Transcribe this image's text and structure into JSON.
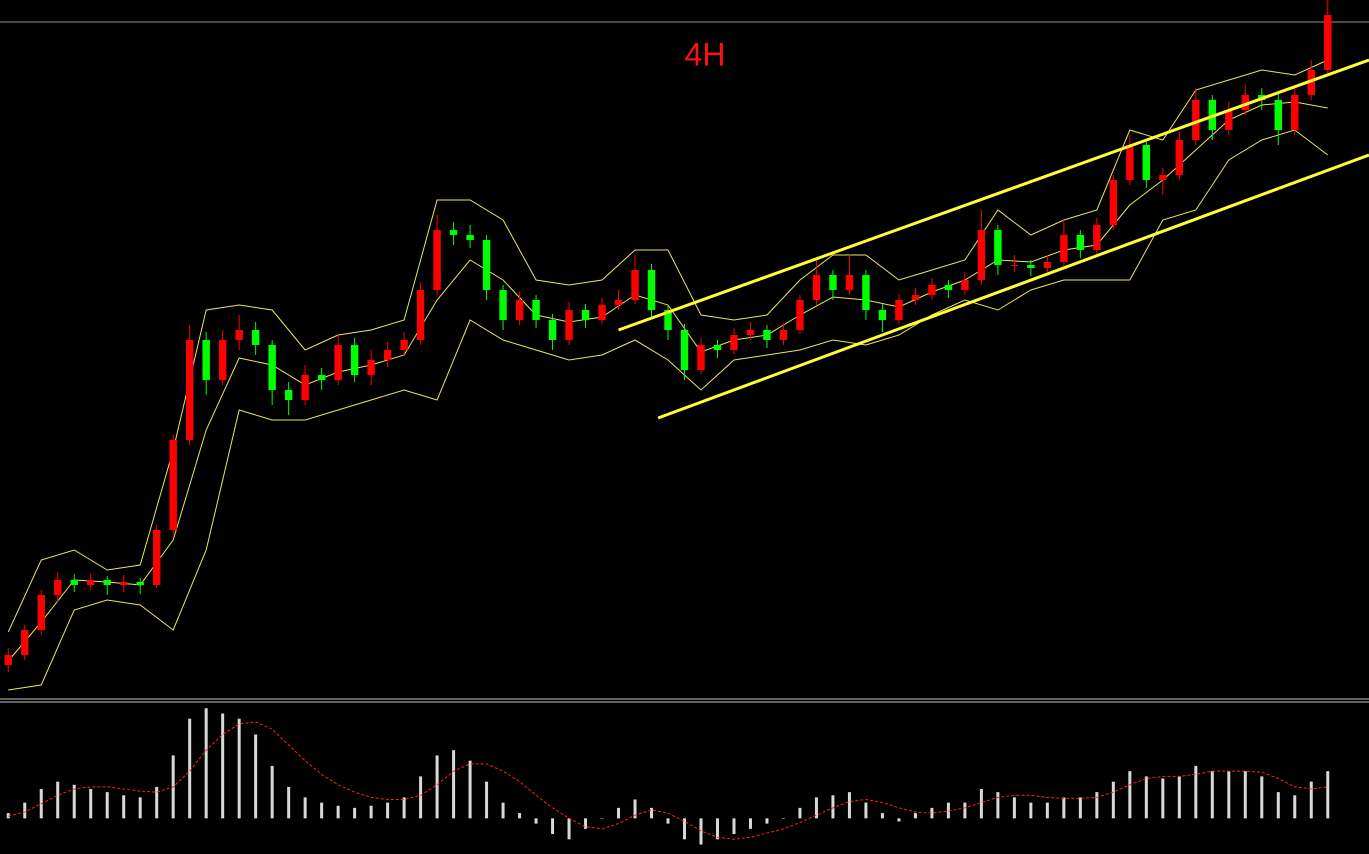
{
  "chart_data": {
    "type": "candlestick",
    "title": "4H",
    "up_color": "#ff0000",
    "down_color": "#00ff00",
    "band_color": "#e8e85a",
    "trendline_color": "#ffff33",
    "xlim": [
      -0.5,
      82.5
    ],
    "ylim": [
      0,
      700
    ],
    "candles": [
      [
        35,
        52,
        28,
        45
      ],
      [
        45,
        75,
        40,
        70
      ],
      [
        70,
        110,
        65,
        105
      ],
      [
        105,
        128,
        98,
        120
      ],
      [
        120,
        126,
        108,
        115
      ],
      [
        115,
        127,
        110,
        120
      ],
      [
        120,
        124,
        105,
        115
      ],
      [
        115,
        125,
        108,
        118
      ],
      [
        118,
        122,
        106,
        115
      ],
      [
        115,
        175,
        112,
        170
      ],
      [
        170,
        265,
        165,
        260
      ],
      [
        260,
        375,
        255,
        360
      ],
      [
        360,
        368,
        305,
        320
      ],
      [
        320,
        370,
        315,
        360
      ],
      [
        360,
        385,
        350,
        370
      ],
      [
        370,
        378,
        345,
        355
      ],
      [
        355,
        360,
        295,
        310
      ],
      [
        310,
        318,
        285,
        300
      ],
      [
        300,
        335,
        295,
        325
      ],
      [
        325,
        332,
        310,
        320
      ],
      [
        320,
        365,
        315,
        355
      ],
      [
        355,
        362,
        318,
        325
      ],
      [
        325,
        350,
        315,
        340
      ],
      [
        340,
        358,
        333,
        350
      ],
      [
        350,
        368,
        344,
        360
      ],
      [
        360,
        418,
        355,
        410
      ],
      [
        410,
        485,
        405,
        470
      ],
      [
        470,
        478,
        455,
        465
      ],
      [
        465,
        475,
        452,
        460
      ],
      [
        460,
        465,
        400,
        410
      ],
      [
        410,
        415,
        370,
        380
      ],
      [
        380,
        408,
        375,
        400
      ],
      [
        400,
        405,
        372,
        380
      ],
      [
        380,
        386,
        350,
        360
      ],
      [
        360,
        398,
        355,
        390
      ],
      [
        390,
        396,
        372,
        380
      ],
      [
        380,
        402,
        376,
        395
      ],
      [
        395,
        410,
        390,
        400
      ],
      [
        400,
        445,
        396,
        430
      ],
      [
        430,
        436,
        382,
        390
      ],
      [
        390,
        395,
        360,
        370
      ],
      [
        370,
        376,
        320,
        330
      ],
      [
        330,
        362,
        326,
        355
      ],
      [
        355,
        360,
        342,
        350
      ],
      [
        350,
        372,
        346,
        365
      ],
      [
        365,
        378,
        360,
        370
      ],
      [
        370,
        375,
        352,
        360
      ],
      [
        360,
        377,
        355,
        370
      ],
      [
        370,
        405,
        366,
        400
      ],
      [
        400,
        440,
        395,
        425
      ],
      [
        425,
        430,
        400,
        410
      ],
      [
        410,
        445,
        405,
        425
      ],
      [
        425,
        430,
        380,
        390
      ],
      [
        390,
        396,
        368,
        380
      ],
      [
        380,
        406,
        376,
        400
      ],
      [
        400,
        412,
        395,
        405
      ],
      [
        405,
        422,
        400,
        415
      ],
      [
        415,
        420,
        402,
        410
      ],
      [
        410,
        428,
        405,
        420
      ],
      [
        420,
        490,
        415,
        470
      ],
      [
        470,
        475,
        425,
        435
      ],
      [
        435,
        445,
        428,
        435
      ],
      [
        435,
        440,
        424,
        432
      ],
      [
        432,
        445,
        428,
        438
      ],
      [
        438,
        480,
        434,
        465
      ],
      [
        465,
        470,
        442,
        450
      ],
      [
        450,
        482,
        446,
        475
      ],
      [
        475,
        525,
        470,
        520
      ],
      [
        520,
        565,
        515,
        555
      ],
      [
        555,
        560,
        512,
        520
      ],
      [
        520,
        532,
        505,
        525
      ],
      [
        525,
        568,
        520,
        560
      ],
      [
        560,
        612,
        555,
        600
      ],
      [
        600,
        605,
        560,
        570
      ],
      [
        570,
        598,
        565,
        590
      ],
      [
        590,
        615,
        585,
        605
      ],
      [
        605,
        612,
        590,
        600
      ],
      [
        600,
        606,
        555,
        570
      ],
      [
        570,
        612,
        565,
        605
      ],
      [
        605,
        640,
        600,
        630
      ],
      [
        630,
        700,
        625,
        685
      ]
    ],
    "bands": {
      "x": [
        0,
        2,
        4,
        6,
        8,
        10,
        12,
        14,
        16,
        18,
        20,
        22,
        24,
        26,
        28,
        30,
        32,
        34,
        36,
        38,
        40,
        42,
        44,
        46,
        48,
        50,
        52,
        54,
        56,
        58,
        60,
        62,
        64,
        66,
        68,
        70,
        72,
        74,
        76,
        78,
        80
      ],
      "upper": [
        68,
        140,
        150,
        130,
        135,
        250,
        390,
        395,
        390,
        350,
        365,
        370,
        380,
        500,
        500,
        480,
        420,
        415,
        420,
        450,
        450,
        385,
        380,
        385,
        420,
        445,
        445,
        420,
        430,
        440,
        490,
        465,
        480,
        490,
        570,
        560,
        610,
        620,
        630,
        625,
        640
      ],
      "middle": [
        39,
        78,
        120,
        118,
        115,
        160,
        270,
        342,
        335,
        315,
        328,
        335,
        345,
        400,
        440,
        420,
        385,
        378,
        383,
        405,
        395,
        348,
        360,
        365,
        385,
        403,
        400,
        393,
        408,
        420,
        440,
        438,
        450,
        455,
        495,
        520,
        550,
        580,
        595,
        598,
        592
      ],
      "lower": [
        10,
        15,
        90,
        100,
        95,
        70,
        150,
        290,
        280,
        280,
        290,
        300,
        310,
        300,
        380,
        360,
        350,
        340,
        345,
        360,
        340,
        310,
        340,
        345,
        350,
        360,
        355,
        365,
        385,
        400,
        390,
        410,
        420,
        420,
        420,
        480,
        490,
        540,
        560,
        570,
        545
      ]
    },
    "trendlines": [
      {
        "x": [
          37,
          82.5
        ],
        "values": [
          370,
          640
        ]
      },
      {
        "x": [
          39.4,
          82.5
        ],
        "values": [
          282,
          545
        ]
      }
    ],
    "macd": {
      "ylim": [
        -34,
        110
      ],
      "hist_color": "#d8d8d8",
      "signal_color": "#ff2020",
      "histogram": [
        5,
        15,
        28,
        35,
        32,
        28,
        25,
        22,
        20,
        30,
        60,
        95,
        105,
        100,
        95,
        80,
        50,
        30,
        20,
        15,
        12,
        10,
        12,
        15,
        20,
        40,
        60,
        65,
        55,
        35,
        15,
        5,
        -5,
        -15,
        -20,
        -10,
        0,
        10,
        18,
        10,
        -5,
        -20,
        -25,
        -20,
        -15,
        -10,
        -5,
        0,
        10,
        20,
        22,
        25,
        15,
        5,
        -3,
        5,
        10,
        15,
        15,
        28,
        25,
        20,
        15,
        15,
        20,
        20,
        25,
        35,
        45,
        40,
        38,
        40,
        50,
        45,
        45,
        45,
        40,
        25,
        22,
        35,
        45
      ],
      "signal": [
        2,
        6,
        14,
        22,
        28,
        30,
        30,
        28,
        26,
        25,
        30,
        45,
        65,
        80,
        90,
        92,
        85,
        70,
        55,
        42,
        32,
        25,
        20,
        18,
        18,
        22,
        32,
        45,
        52,
        52,
        45,
        35,
        22,
        10,
        0,
        -8,
        -10,
        -5,
        3,
        8,
        5,
        -3,
        -12,
        -18,
        -20,
        -18,
        -14,
        -10,
        -4,
        3,
        10,
        16,
        18,
        15,
        10,
        6,
        5,
        7,
        10,
        15,
        20,
        22,
        22,
        20,
        19,
        19,
        20,
        25,
        32,
        38,
        40,
        40,
        42,
        45,
        45,
        45,
        44,
        38,
        30,
        28,
        30
      ]
    }
  }
}
